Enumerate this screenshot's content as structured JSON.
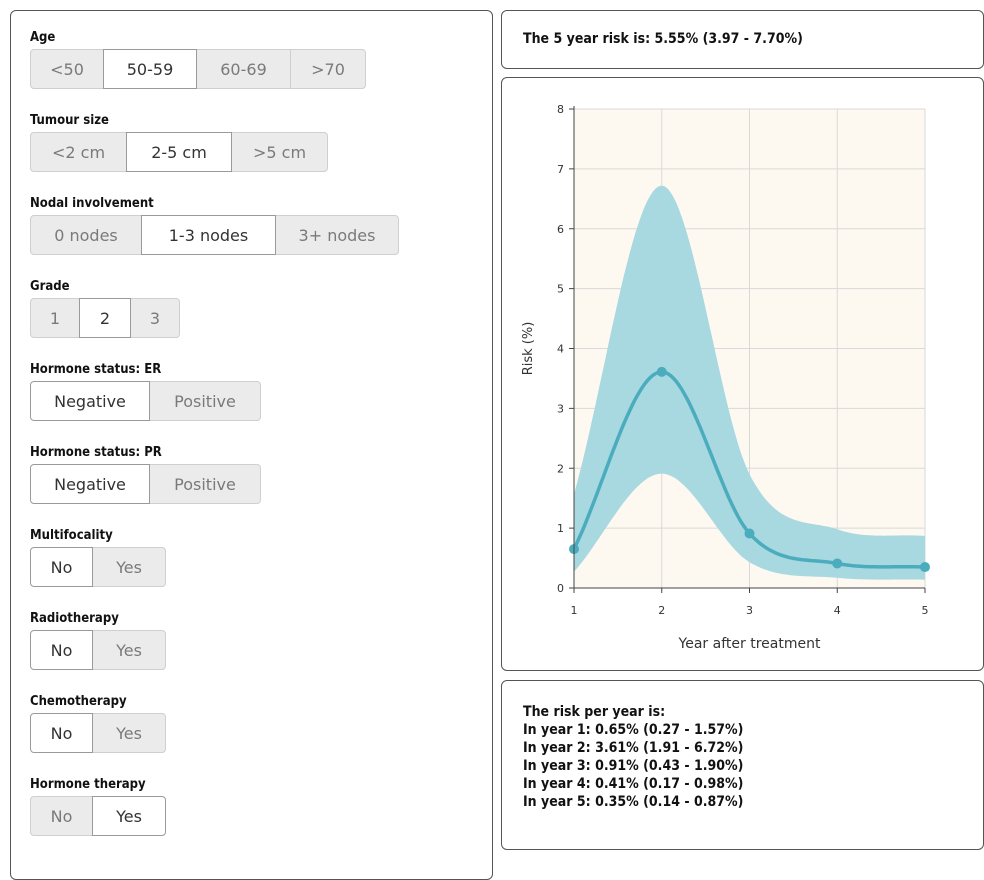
{
  "inputs": {
    "age": {
      "label": "Age",
      "options": [
        "<50",
        "50-59",
        "60-69",
        ">70"
      ],
      "selected": "50-59"
    },
    "tumour_size": {
      "label": "Tumour size",
      "options": [
        "<2 cm",
        "2-5 cm",
        ">5 cm"
      ],
      "selected": "2-5 cm"
    },
    "nodal": {
      "label": "Nodal involvement",
      "options": [
        "0 nodes",
        "1-3 nodes",
        "3+ nodes"
      ],
      "selected": "1-3 nodes"
    },
    "grade": {
      "label": "Grade",
      "options": [
        "1",
        "2",
        "3"
      ],
      "selected": "2"
    },
    "er": {
      "label": "Hormone status: ER",
      "options": [
        "Negative",
        "Positive"
      ],
      "selected": "Negative"
    },
    "pr": {
      "label": "Hormone status: PR",
      "options": [
        "Negative",
        "Positive"
      ],
      "selected": "Negative"
    },
    "multifocality": {
      "label": "Multifocality",
      "options": [
        "No",
        "Yes"
      ],
      "selected": "No"
    },
    "radiotherapy": {
      "label": "Radiotherapy",
      "options": [
        "No",
        "Yes"
      ],
      "selected": "No"
    },
    "chemotherapy": {
      "label": "Chemotherapy",
      "options": [
        "No",
        "Yes"
      ],
      "selected": "No"
    },
    "hormone_therapy": {
      "label": "Hormone therapy",
      "options": [
        "No",
        "Yes"
      ],
      "selected": "Yes"
    }
  },
  "summary": {
    "text": "The 5 year risk is: 5.55% (3.97 - 7.70%)"
  },
  "per_year": {
    "title": "The risk per year is:",
    "lines": [
      "In year 1: 0.65% (0.27 - 1.57%)",
      "In year 2: 3.61% (1.91 - 6.72%)",
      "In year 3: 0.91% (0.43 - 1.90%)",
      "In year 4: 0.41% (0.17 - 0.98%)",
      "In year 5: 0.35% (0.14 - 0.87%)"
    ]
  },
  "chart_data": {
    "type": "line",
    "x": [
      1,
      2,
      3,
      4,
      5
    ],
    "series": [
      {
        "values": [
          0.65,
          3.61,
          0.91,
          0.41,
          0.35
        ],
        "lower": [
          0.27,
          1.91,
          0.43,
          0.17,
          0.14
        ],
        "upper": [
          1.57,
          6.72,
          1.9,
          0.98,
          0.87
        ]
      }
    ],
    "xlabel": "Year after treatment",
    "ylabel": "Risk (%)",
    "xlim": [
      1,
      5
    ],
    "ylim": [
      0,
      8
    ],
    "xticks": [
      1,
      2,
      3,
      4,
      5
    ],
    "yticks": [
      0,
      1,
      2,
      3,
      4,
      5,
      6,
      7,
      8
    ],
    "grid": true,
    "colors": {
      "line": "#4bacbe",
      "band": "#a8d8e0",
      "plot_bg": "#fdf9f1",
      "grid": "#d9d9d9"
    }
  }
}
